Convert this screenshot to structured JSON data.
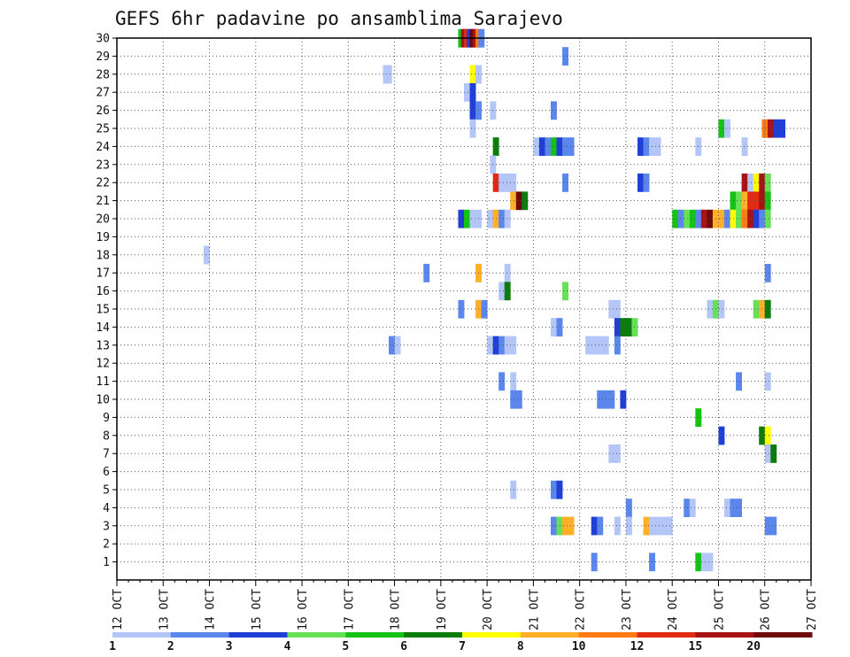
{
  "chart_data": {
    "type": "heatmap",
    "title": "GEFS 6hr padavine po ansamblima Sarajevo",
    "xlabel": "",
    "ylabel": "",
    "x_ticks": [
      "12 OCT",
      "13 OCT",
      "14 OCT",
      "15 OCT",
      "16 OCT",
      "17 OCT",
      "18 OCT",
      "19 OCT",
      "20 OCT",
      "21 OCT",
      "22 OCT",
      "23 OCT",
      "24 OCT",
      "25 OCT",
      "26 OCT",
      "27 OCT"
    ],
    "y_ticks": [
      "1",
      "2",
      "3",
      "4",
      "5",
      "6",
      "7",
      "8",
      "9",
      "10",
      "11",
      "12",
      "13",
      "14",
      "15",
      "16",
      "17",
      "18",
      "19",
      "20",
      "21",
      "22",
      "23",
      "24",
      "25",
      "26",
      "27",
      "28",
      "29",
      "30"
    ],
    "x_unit": "6-hour steps from 12 OCT 00 UTC",
    "xlim": [
      0,
      60
    ],
    "ylim": [
      0,
      30
    ],
    "grid": true,
    "colorbar": {
      "labels": [
        "1",
        "2",
        "3",
        "4",
        "5",
        "6",
        "7",
        "8",
        "10",
        "12",
        "15",
        "20"
      ],
      "colors": [
        "#b3c6f7",
        "#5b86ec",
        "#1f3fd6",
        "#66e056",
        "#14c314",
        "#0c7c0c",
        "#ffff00",
        "#ffb028",
        "#ff7c14",
        "#e02a14",
        "#a81414",
        "#6e0a0a"
      ]
    },
    "cells": [
      [
        29.75,
        30,
        4
      ],
      [
        30,
        30,
        10
      ],
      [
        30.25,
        30,
        9
      ],
      [
        30.5,
        30,
        2
      ],
      [
        30.75,
        30,
        11
      ],
      [
        31,
        30,
        10
      ],
      [
        31.25,
        30,
        8
      ],
      [
        31.5,
        30,
        1
      ],
      [
        38.75,
        29,
        1
      ],
      [
        23.25,
        28,
        0
      ],
      [
        23.5,
        28,
        0
      ],
      [
        30.75,
        28,
        6
      ],
      [
        31.25,
        28,
        0
      ],
      [
        30.25,
        27,
        0
      ],
      [
        30.75,
        27,
        2
      ],
      [
        30.75,
        26,
        2
      ],
      [
        31.25,
        26,
        1
      ],
      [
        32.5,
        26,
        0
      ],
      [
        37.75,
        26,
        1
      ],
      [
        30.75,
        25,
        0
      ],
      [
        52.25,
        25,
        4
      ],
      [
        52.75,
        25,
        0
      ],
      [
        56,
        25,
        8
      ],
      [
        56.5,
        25,
        10
      ],
      [
        57,
        25,
        2
      ],
      [
        57.5,
        25,
        2
      ],
      [
        32.75,
        24,
        5
      ],
      [
        36.25,
        24,
        0
      ],
      [
        36.75,
        24,
        2
      ],
      [
        37.25,
        24,
        1
      ],
      [
        37.75,
        24,
        4
      ],
      [
        38.25,
        24,
        2
      ],
      [
        38.75,
        24,
        1
      ],
      [
        39.25,
        24,
        1
      ],
      [
        45.25,
        24,
        2
      ],
      [
        45.75,
        24,
        1
      ],
      [
        46.25,
        24,
        0
      ],
      [
        46.75,
        24,
        0
      ],
      [
        50.25,
        24,
        0
      ],
      [
        54.25,
        24,
        0
      ],
      [
        32.5,
        23,
        0
      ],
      [
        32.75,
        22,
        9
      ],
      [
        33.25,
        22,
        0
      ],
      [
        33.75,
        22,
        0
      ],
      [
        34.25,
        22,
        0
      ],
      [
        38.75,
        22,
        1
      ],
      [
        45.25,
        22,
        2
      ],
      [
        45.75,
        22,
        1
      ],
      [
        54.25,
        22,
        10
      ],
      [
        54.75,
        22,
        0
      ],
      [
        55.25,
        22,
        6
      ],
      [
        55.75,
        22,
        10
      ],
      [
        56.25,
        22,
        3
      ],
      [
        34.25,
        21,
        7
      ],
      [
        34.75,
        21,
        11
      ],
      [
        35.25,
        21,
        5
      ],
      [
        53.25,
        21,
        4
      ],
      [
        53.75,
        21,
        3
      ],
      [
        54.25,
        21,
        7
      ],
      [
        54.75,
        21,
        9
      ],
      [
        55.25,
        21,
        9
      ],
      [
        55.75,
        21,
        10
      ],
      [
        56.25,
        21,
        4
      ],
      [
        29.75,
        20,
        2
      ],
      [
        30.25,
        20,
        4
      ],
      [
        30.75,
        20,
        0
      ],
      [
        31.25,
        20,
        0
      ],
      [
        32.25,
        20,
        0
      ],
      [
        32.75,
        20,
        7
      ],
      [
        33.25,
        20,
        1
      ],
      [
        33.75,
        20,
        0
      ],
      [
        48.25,
        20,
        4
      ],
      [
        48.75,
        20,
        1
      ],
      [
        49.25,
        20,
        3
      ],
      [
        49.75,
        20,
        4
      ],
      [
        50.25,
        20,
        1
      ],
      [
        50.75,
        20,
        10
      ],
      [
        51.25,
        20,
        11
      ],
      [
        51.75,
        20,
        7
      ],
      [
        52.25,
        20,
        7
      ],
      [
        52.75,
        20,
        1
      ],
      [
        53.25,
        20,
        6
      ],
      [
        53.75,
        20,
        3
      ],
      [
        54.25,
        20,
        8
      ],
      [
        54.75,
        20,
        10
      ],
      [
        55.25,
        20,
        2
      ],
      [
        55.75,
        20,
        1
      ],
      [
        56.25,
        20,
        3
      ],
      [
        7.75,
        18,
        0
      ],
      [
        26.75,
        17,
        1
      ],
      [
        31.25,
        17,
        7
      ],
      [
        33.75,
        17,
        0
      ],
      [
        56.25,
        17,
        1
      ],
      [
        33.25,
        16,
        0
      ],
      [
        33.75,
        16,
        5
      ],
      [
        38.75,
        16,
        3
      ],
      [
        29.75,
        15,
        1
      ],
      [
        31.25,
        15,
        7
      ],
      [
        31.75,
        15,
        1
      ],
      [
        42.75,
        15,
        0
      ],
      [
        43.25,
        15,
        0
      ],
      [
        51.25,
        15,
        0
      ],
      [
        51.75,
        15,
        3
      ],
      [
        52.25,
        15,
        0
      ],
      [
        55.25,
        15,
        3
      ],
      [
        55.75,
        15,
        7
      ],
      [
        56.25,
        15,
        5
      ],
      [
        37.75,
        14,
        0
      ],
      [
        38.25,
        14,
        1
      ],
      [
        43.25,
        14,
        2
      ],
      [
        43.75,
        14,
        5
      ],
      [
        44.25,
        14,
        5
      ],
      [
        44.75,
        14,
        3
      ],
      [
        23.75,
        13,
        1
      ],
      [
        24.25,
        13,
        0
      ],
      [
        32.25,
        13,
        0
      ],
      [
        32.75,
        13,
        2
      ],
      [
        33.25,
        13,
        1
      ],
      [
        33.75,
        13,
        0
      ],
      [
        34.25,
        13,
        0
      ],
      [
        40.75,
        13,
        0
      ],
      [
        41.25,
        13,
        0
      ],
      [
        41.75,
        13,
        0
      ],
      [
        42.25,
        13,
        0
      ],
      [
        43.25,
        13,
        1
      ],
      [
        33.25,
        11,
        1
      ],
      [
        34.25,
        11,
        0
      ],
      [
        53.75,
        11,
        1
      ],
      [
        56.25,
        11,
        0
      ],
      [
        34.25,
        10,
        1
      ],
      [
        34.75,
        10,
        1
      ],
      [
        41.75,
        10,
        1
      ],
      [
        42.25,
        10,
        1
      ],
      [
        42.75,
        10,
        1
      ],
      [
        43.75,
        10,
        2
      ],
      [
        50.25,
        9,
        4
      ],
      [
        52.25,
        8,
        2
      ],
      [
        55.75,
        8,
        5
      ],
      [
        56.25,
        8,
        6
      ],
      [
        42.75,
        7,
        0
      ],
      [
        43.25,
        7,
        0
      ],
      [
        56.25,
        7,
        0
      ],
      [
        56.75,
        7,
        5
      ],
      [
        34.25,
        5,
        0
      ],
      [
        37.75,
        5,
        1
      ],
      [
        38.25,
        5,
        2
      ],
      [
        44.25,
        4,
        1
      ],
      [
        49.25,
        4,
        1
      ],
      [
        49.75,
        4,
        0
      ],
      [
        52.75,
        4,
        0
      ],
      [
        53.25,
        4,
        1
      ],
      [
        53.75,
        4,
        1
      ],
      [
        37.75,
        3,
        1
      ],
      [
        38.25,
        3,
        3
      ],
      [
        38.75,
        3,
        7
      ],
      [
        39.25,
        3,
        7
      ],
      [
        41.25,
        3,
        2
      ],
      [
        41.75,
        3,
        1
      ],
      [
        43.25,
        3,
        0
      ],
      [
        44.25,
        3,
        0
      ],
      [
        45.75,
        3,
        7
      ],
      [
        46.25,
        3,
        0
      ],
      [
        46.75,
        3,
        0
      ],
      [
        47.25,
        3,
        0
      ],
      [
        47.75,
        3,
        0
      ],
      [
        56.25,
        3,
        1
      ],
      [
        56.75,
        3,
        1
      ],
      [
        41.25,
        1,
        1
      ],
      [
        46.25,
        1,
        1
      ],
      [
        50.25,
        1,
        4
      ],
      [
        50.75,
        1,
        0
      ],
      [
        51.25,
        1,
        0
      ]
    ]
  }
}
